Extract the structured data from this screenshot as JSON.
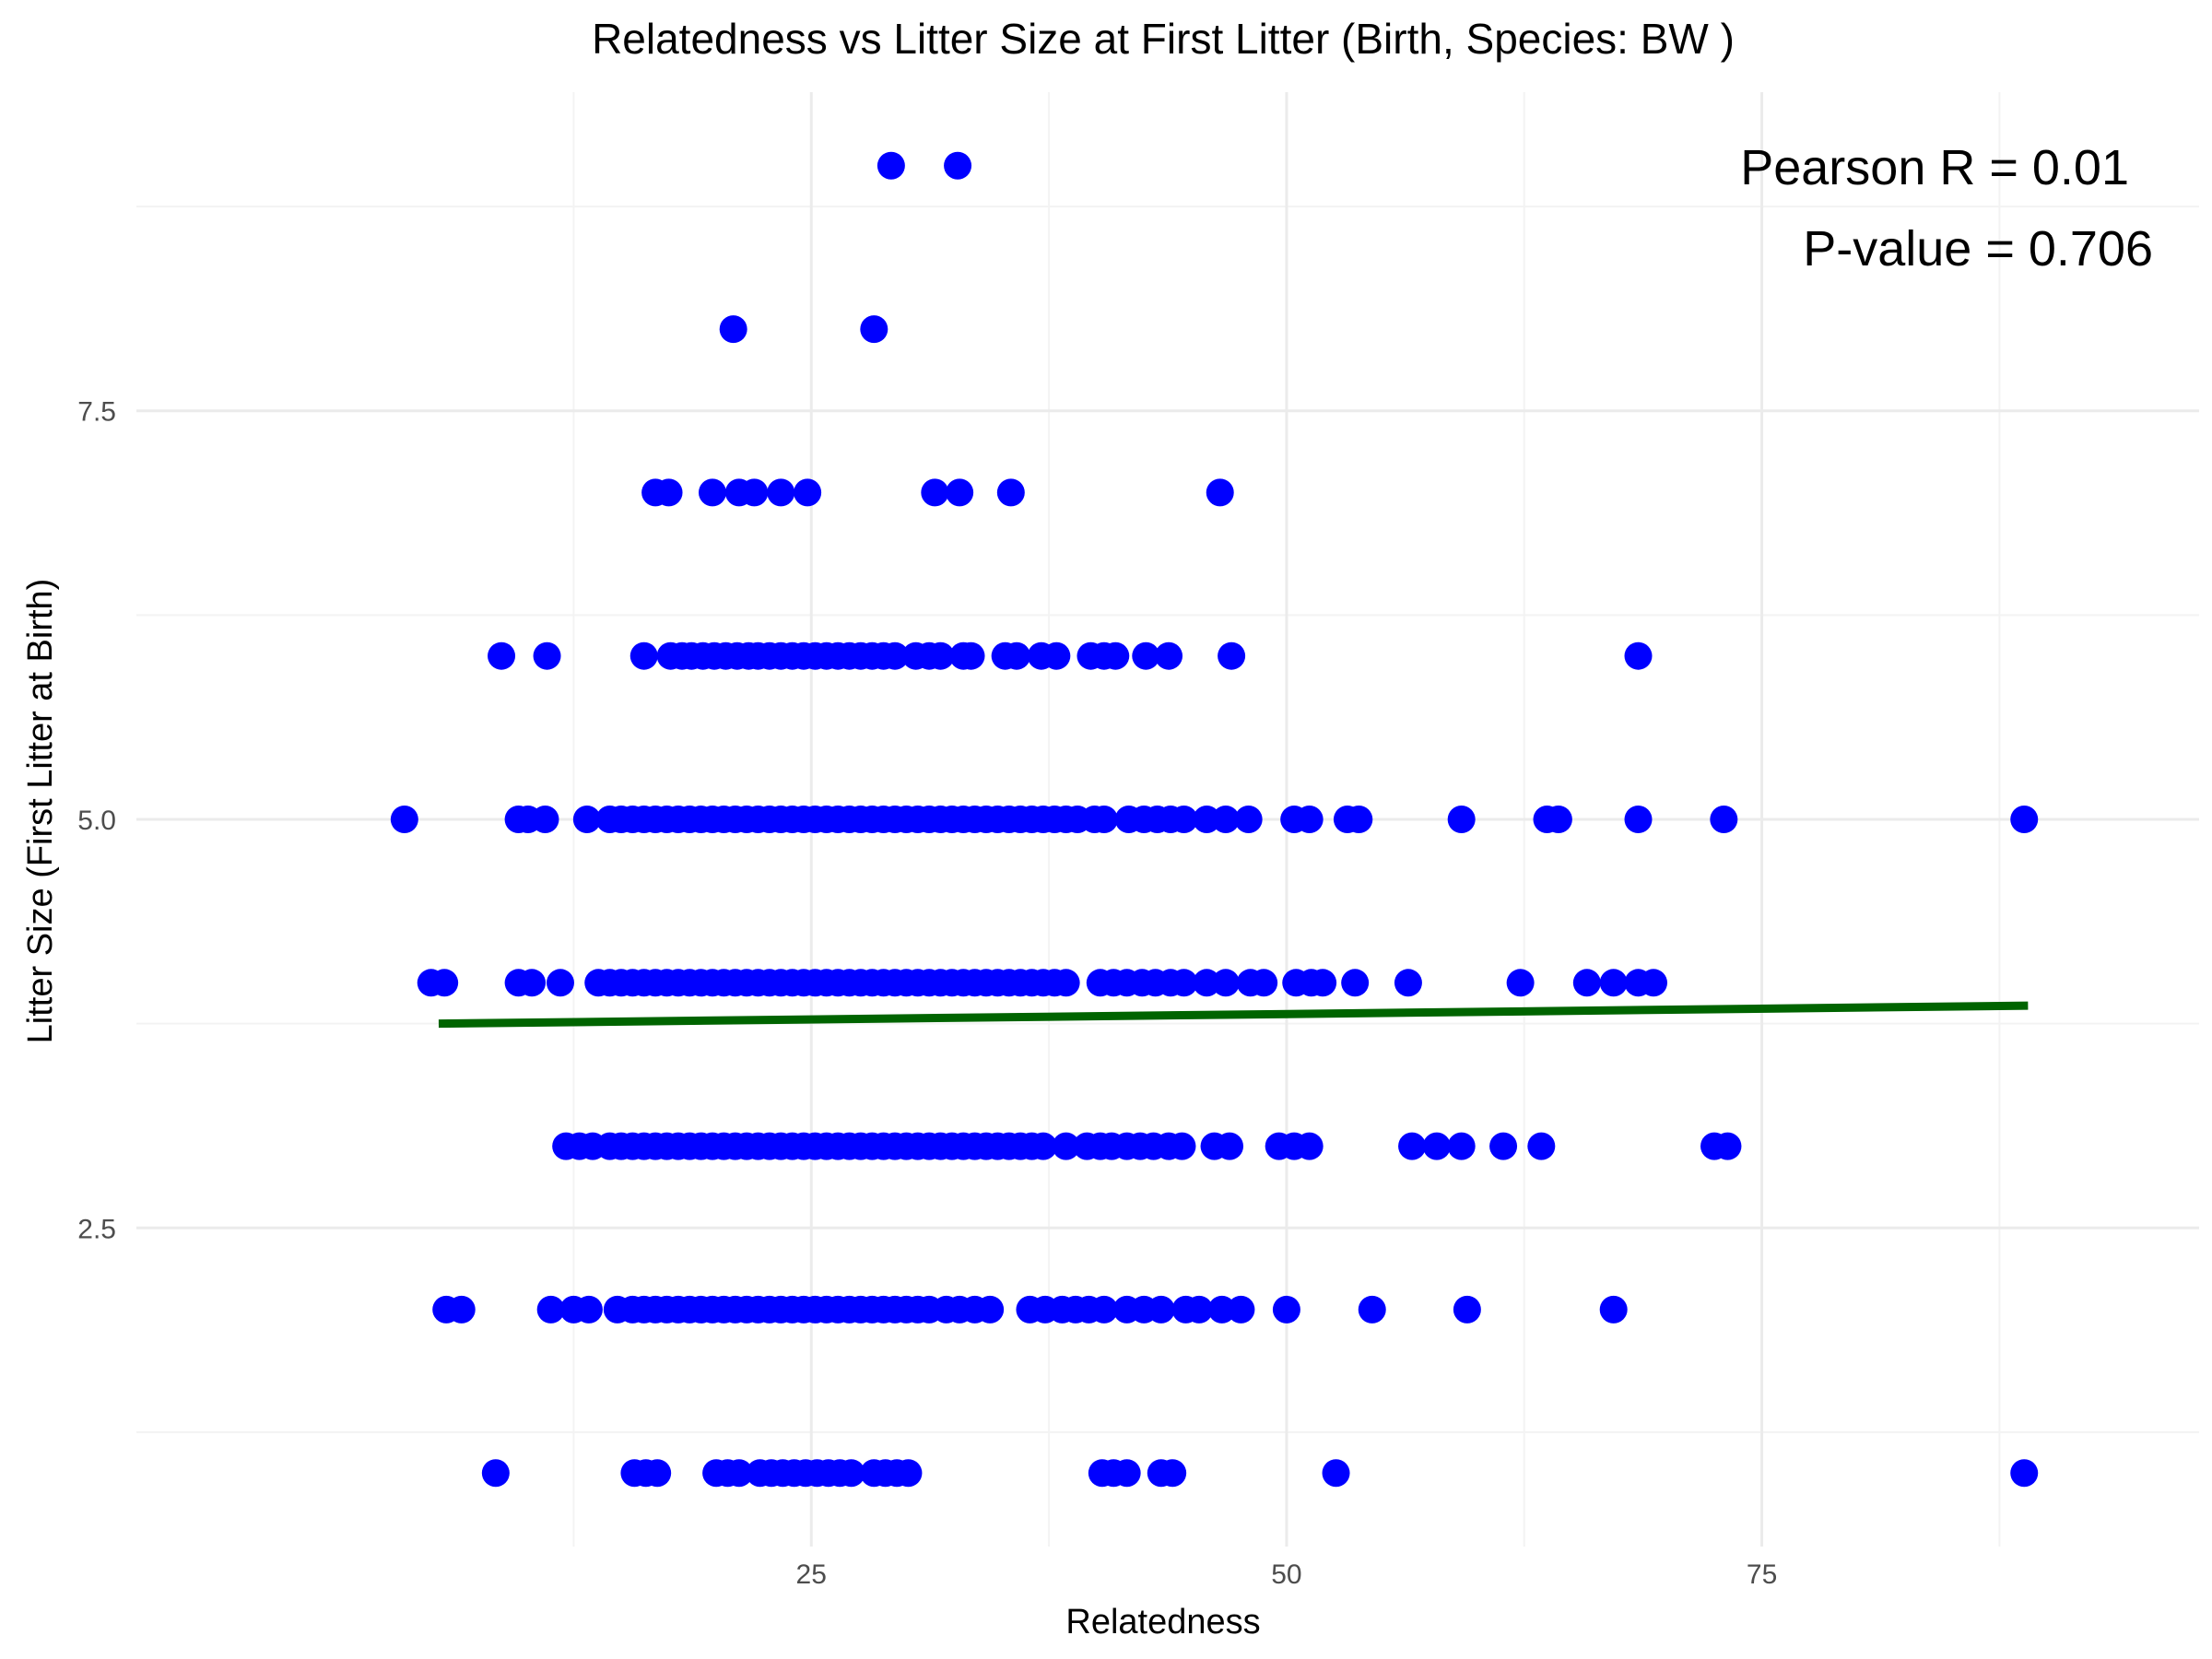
{
  "chart_data": {
    "type": "scatter",
    "title": "Relatedness vs Litter Size at First Litter (Birth, Species: BW )",
    "xlabel": "Relatedness",
    "ylabel": "Litter Size (First Litter at Birth)",
    "xlim": [
      -10.5,
      98
    ],
    "ylim": [
      0.55,
      9.45
    ],
    "x_ticks": [
      25,
      50,
      75
    ],
    "x_tick_labels": [
      "25",
      "50",
      "75"
    ],
    "y_ticks": [
      2.5,
      5.0,
      7.5
    ],
    "y_tick_labels": [
      "2.5",
      "5.0",
      "7.5"
    ],
    "grid": true,
    "point_color": "#0000ff",
    "line_color": "#006400",
    "annotations": [
      "Pearson R = 0.01",
      "P-value = 0.706"
    ],
    "trend_line": {
      "x": [
        5.4,
        89
      ],
      "y": [
        3.75,
        3.86
      ]
    },
    "points": [
      [
        29.2,
        9
      ],
      [
        32.7,
        9
      ],
      [
        20.9,
        8
      ],
      [
        28.3,
        8
      ],
      [
        16.8,
        7
      ],
      [
        17.5,
        7
      ],
      [
        19.8,
        7
      ],
      [
        21.2,
        7
      ],
      [
        22.0,
        7
      ],
      [
        23.4,
        7
      ],
      [
        24.8,
        7
      ],
      [
        31.5,
        7
      ],
      [
        32.8,
        7
      ],
      [
        35.5,
        7
      ],
      [
        46.5,
        7
      ],
      [
        8.7,
        6
      ],
      [
        11.1,
        6
      ],
      [
        16.2,
        6
      ],
      [
        17.6,
        6
      ],
      [
        18.2,
        6
      ],
      [
        18.7,
        6
      ],
      [
        19.3,
        6
      ],
      [
        19.9,
        6
      ],
      [
        20.5,
        6
      ],
      [
        21.1,
        6
      ],
      [
        21.7,
        6
      ],
      [
        22.2,
        6
      ],
      [
        22.8,
        6
      ],
      [
        23.4,
        6
      ],
      [
        24.0,
        6
      ],
      [
        24.6,
        6
      ],
      [
        25.2,
        6
      ],
      [
        25.8,
        6
      ],
      [
        26.4,
        6
      ],
      [
        27.0,
        6
      ],
      [
        27.6,
        6
      ],
      [
        28.2,
        6
      ],
      [
        28.8,
        6
      ],
      [
        29.4,
        6
      ],
      [
        30.5,
        6
      ],
      [
        31.2,
        6
      ],
      [
        31.8,
        6
      ],
      [
        33.0,
        6
      ],
      [
        33.4,
        6
      ],
      [
        35.2,
        6
      ],
      [
        35.8,
        6
      ],
      [
        37.1,
        6
      ],
      [
        37.9,
        6
      ],
      [
        39.7,
        6
      ],
      [
        40.4,
        6
      ],
      [
        41.0,
        6
      ],
      [
        42.6,
        6
      ],
      [
        43.8,
        6
      ],
      [
        47.1,
        6
      ],
      [
        68.5,
        6
      ],
      [
        3.6,
        5
      ],
      [
        9.6,
        5
      ],
      [
        10.1,
        5
      ],
      [
        11.0,
        5
      ],
      [
        13.2,
        5
      ],
      [
        14.4,
        5
      ],
      [
        15.0,
        5
      ],
      [
        15.6,
        5
      ],
      [
        16.2,
        5
      ],
      [
        16.8,
        5
      ],
      [
        17.4,
        5
      ],
      [
        18.0,
        5
      ],
      [
        18.6,
        5
      ],
      [
        19.2,
        5
      ],
      [
        19.8,
        5
      ],
      [
        20.4,
        5
      ],
      [
        21.0,
        5
      ],
      [
        21.6,
        5
      ],
      [
        22.2,
        5
      ],
      [
        22.8,
        5
      ],
      [
        23.4,
        5
      ],
      [
        24.0,
        5
      ],
      [
        24.6,
        5
      ],
      [
        25.2,
        5
      ],
      [
        25.8,
        5
      ],
      [
        26.4,
        5
      ],
      [
        27.0,
        5
      ],
      [
        27.6,
        5
      ],
      [
        28.2,
        5
      ],
      [
        28.8,
        5
      ],
      [
        29.4,
        5
      ],
      [
        30.0,
        5
      ],
      [
        30.6,
        5
      ],
      [
        31.2,
        5
      ],
      [
        31.8,
        5
      ],
      [
        32.4,
        5
      ],
      [
        33.0,
        5
      ],
      [
        33.6,
        5
      ],
      [
        34.2,
        5
      ],
      [
        34.8,
        5
      ],
      [
        35.4,
        5
      ],
      [
        36.0,
        5
      ],
      [
        36.6,
        5
      ],
      [
        37.2,
        5
      ],
      [
        37.8,
        5
      ],
      [
        38.4,
        5
      ],
      [
        39.0,
        5
      ],
      [
        39.9,
        5
      ],
      [
        40.4,
        5
      ],
      [
        41.7,
        5
      ],
      [
        42.5,
        5
      ],
      [
        43.2,
        5
      ],
      [
        43.9,
        5
      ],
      [
        44.6,
        5
      ],
      [
        45.8,
        5
      ],
      [
        46.8,
        5
      ],
      [
        48.0,
        5
      ],
      [
        50.4,
        5
      ],
      [
        51.2,
        5
      ],
      [
        53.2,
        5
      ],
      [
        53.8,
        5
      ],
      [
        59.2,
        5
      ],
      [
        63.7,
        5
      ],
      [
        64.3,
        5
      ],
      [
        68.5,
        5
      ],
      [
        73.0,
        5
      ],
      [
        88.8,
        5
      ],
      [
        5.0,
        4
      ],
      [
        5.7,
        4
      ],
      [
        9.6,
        4
      ],
      [
        10.3,
        4
      ],
      [
        11.8,
        4
      ],
      [
        13.8,
        4
      ],
      [
        14.4,
        4
      ],
      [
        15.0,
        4
      ],
      [
        15.6,
        4
      ],
      [
        16.2,
        4
      ],
      [
        16.8,
        4
      ],
      [
        17.4,
        4
      ],
      [
        18.0,
        4
      ],
      [
        18.6,
        4
      ],
      [
        19.2,
        4
      ],
      [
        19.8,
        4
      ],
      [
        20.4,
        4
      ],
      [
        21.0,
        4
      ],
      [
        21.6,
        4
      ],
      [
        22.2,
        4
      ],
      [
        22.8,
        4
      ],
      [
        23.4,
        4
      ],
      [
        24.0,
        4
      ],
      [
        24.6,
        4
      ],
      [
        25.2,
        4
      ],
      [
        25.8,
        4
      ],
      [
        26.4,
        4
      ],
      [
        27.0,
        4
      ],
      [
        27.6,
        4
      ],
      [
        28.2,
        4
      ],
      [
        28.8,
        4
      ],
      [
        29.4,
        4
      ],
      [
        30.0,
        4
      ],
      [
        30.6,
        4
      ],
      [
        31.2,
        4
      ],
      [
        31.8,
        4
      ],
      [
        32.4,
        4
      ],
      [
        33.0,
        4
      ],
      [
        33.6,
        4
      ],
      [
        34.2,
        4
      ],
      [
        34.8,
        4
      ],
      [
        35.4,
        4
      ],
      [
        36.0,
        4
      ],
      [
        36.6,
        4
      ],
      [
        37.2,
        4
      ],
      [
        37.8,
        4
      ],
      [
        38.4,
        4
      ],
      [
        40.2,
        4
      ],
      [
        40.9,
        4
      ],
      [
        41.6,
        4
      ],
      [
        42.4,
        4
      ],
      [
        43.1,
        4
      ],
      [
        43.9,
        4
      ],
      [
        44.6,
        4
      ],
      [
        45.8,
        4
      ],
      [
        46.8,
        4
      ],
      [
        48.1,
        4
      ],
      [
        48.8,
        4
      ],
      [
        50.5,
        4
      ],
      [
        51.3,
        4
      ],
      [
        51.9,
        4
      ],
      [
        53.6,
        4
      ],
      [
        56.4,
        4
      ],
      [
        62.3,
        4
      ],
      [
        65.8,
        4
      ],
      [
        67.2,
        4
      ],
      [
        68.5,
        4
      ],
      [
        69.3,
        4
      ],
      [
        12.1,
        3
      ],
      [
        12.8,
        3
      ],
      [
        13.5,
        3
      ],
      [
        14.4,
        3
      ],
      [
        15.0,
        3
      ],
      [
        15.6,
        3
      ],
      [
        16.2,
        3
      ],
      [
        16.8,
        3
      ],
      [
        17.4,
        3
      ],
      [
        18.0,
        3
      ],
      [
        18.6,
        3
      ],
      [
        19.2,
        3
      ],
      [
        19.8,
        3
      ],
      [
        20.4,
        3
      ],
      [
        21.0,
        3
      ],
      [
        21.6,
        3
      ],
      [
        22.2,
        3
      ],
      [
        22.8,
        3
      ],
      [
        23.4,
        3
      ],
      [
        24.0,
        3
      ],
      [
        24.6,
        3
      ],
      [
        25.2,
        3
      ],
      [
        25.8,
        3
      ],
      [
        26.4,
        3
      ],
      [
        27.0,
        3
      ],
      [
        27.6,
        3
      ],
      [
        28.2,
        3
      ],
      [
        28.8,
        3
      ],
      [
        29.4,
        3
      ],
      [
        30.0,
        3
      ],
      [
        30.6,
        3
      ],
      [
        31.2,
        3
      ],
      [
        31.8,
        3
      ],
      [
        32.4,
        3
      ],
      [
        33.0,
        3
      ],
      [
        33.6,
        3
      ],
      [
        34.2,
        3
      ],
      [
        34.8,
        3
      ],
      [
        35.4,
        3
      ],
      [
        36.0,
        3
      ],
      [
        36.6,
        3
      ],
      [
        37.2,
        3
      ],
      [
        38.4,
        3
      ],
      [
        39.5,
        3
      ],
      [
        40.2,
        3
      ],
      [
        40.8,
        3
      ],
      [
        41.6,
        3
      ],
      [
        42.3,
        3
      ],
      [
        43.0,
        3
      ],
      [
        43.8,
        3
      ],
      [
        44.5,
        3
      ],
      [
        46.2,
        3
      ],
      [
        47.0,
        3
      ],
      [
        49.6,
        3
      ],
      [
        50.4,
        3
      ],
      [
        51.2,
        3
      ],
      [
        56.6,
        3
      ],
      [
        57.9,
        3
      ],
      [
        59.2,
        3
      ],
      [
        61.4,
        3
      ],
      [
        63.4,
        3
      ],
      [
        72.5,
        3
      ],
      [
        73.2,
        3
      ],
      [
        5.8,
        2
      ],
      [
        6.6,
        2
      ],
      [
        11.3,
        2
      ],
      [
        12.5,
        2
      ],
      [
        13.3,
        2
      ],
      [
        14.8,
        2
      ],
      [
        15.6,
        2
      ],
      [
        16.2,
        2
      ],
      [
        16.8,
        2
      ],
      [
        17.4,
        2
      ],
      [
        18.0,
        2
      ],
      [
        18.6,
        2
      ],
      [
        19.2,
        2
      ],
      [
        19.8,
        2
      ],
      [
        20.4,
        2
      ],
      [
        21.0,
        2
      ],
      [
        21.6,
        2
      ],
      [
        22.2,
        2
      ],
      [
        22.8,
        2
      ],
      [
        23.4,
        2
      ],
      [
        24.0,
        2
      ],
      [
        24.6,
        2
      ],
      [
        25.2,
        2
      ],
      [
        25.8,
        2
      ],
      [
        26.4,
        2
      ],
      [
        27.0,
        2
      ],
      [
        27.6,
        2
      ],
      [
        28.2,
        2
      ],
      [
        28.8,
        2
      ],
      [
        29.4,
        2
      ],
      [
        30.0,
        2
      ],
      [
        30.6,
        2
      ],
      [
        31.2,
        2
      ],
      [
        32.1,
        2
      ],
      [
        32.8,
        2
      ],
      [
        33.6,
        2
      ],
      [
        34.4,
        2
      ],
      [
        36.5,
        2
      ],
      [
        37.3,
        2
      ],
      [
        38.2,
        2
      ],
      [
        38.9,
        2
      ],
      [
        39.6,
        2
      ],
      [
        40.4,
        2
      ],
      [
        41.6,
        2
      ],
      [
        42.5,
        2
      ],
      [
        43.4,
        2
      ],
      [
        44.7,
        2
      ],
      [
        45.4,
        2
      ],
      [
        46.6,
        2
      ],
      [
        47.6,
        2
      ],
      [
        50.0,
        2
      ],
      [
        54.5,
        2
      ],
      [
        59.5,
        2
      ],
      [
        67.2,
        2
      ],
      [
        8.4,
        1
      ],
      [
        15.7,
        1
      ],
      [
        16.3,
        1
      ],
      [
        16.9,
        1
      ],
      [
        20.0,
        1
      ],
      [
        20.6,
        1
      ],
      [
        21.2,
        1
      ],
      [
        22.3,
        1
      ],
      [
        22.9,
        1
      ],
      [
        23.5,
        1
      ],
      [
        24.1,
        1
      ],
      [
        24.7,
        1
      ],
      [
        25.3,
        1
      ],
      [
        25.9,
        1
      ],
      [
        26.5,
        1
      ],
      [
        27.1,
        1
      ],
      [
        28.3,
        1
      ],
      [
        28.9,
        1
      ],
      [
        29.5,
        1
      ],
      [
        30.1,
        1
      ],
      [
        40.3,
        1
      ],
      [
        40.9,
        1
      ],
      [
        41.6,
        1
      ],
      [
        43.4,
        1
      ],
      [
        44.0,
        1
      ],
      [
        52.6,
        1
      ],
      [
        88.8,
        1
      ]
    ]
  }
}
